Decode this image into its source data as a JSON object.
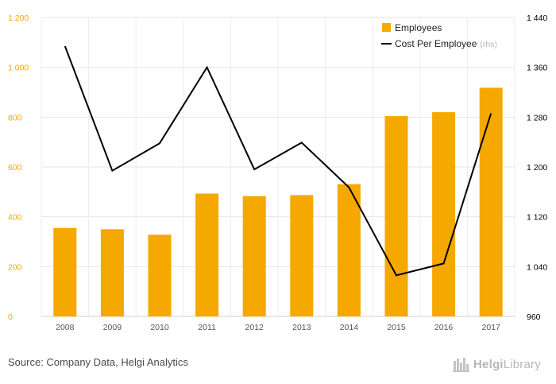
{
  "chart_data": {
    "type": "bar",
    "categories": [
      "2008",
      "2009",
      "2010",
      "2011",
      "2012",
      "2013",
      "2014",
      "2015",
      "2016",
      "2017"
    ],
    "series": [
      {
        "name": "Employees",
        "type": "bar",
        "axis": "left",
        "color": "#f5a800",
        "values": [
          355,
          350,
          328,
          493,
          483,
          487,
          531,
          804,
          820,
          918
        ]
      },
      {
        "name": "Cost Per Employee",
        "suffix": "(rhs)",
        "type": "line",
        "axis": "right",
        "color": "#000000",
        "values": [
          1394,
          1194,
          1238,
          1360,
          1196,
          1239,
          1167,
          1026,
          1045,
          1286
        ]
      }
    ],
    "left_axis": {
      "range": [
        0,
        1200
      ],
      "ticks": [
        0,
        200,
        400,
        600,
        800,
        1000,
        1200
      ],
      "tick_labels": [
        "0",
        "200",
        "400",
        "600",
        "800",
        "1 000",
        "1 200"
      ],
      "color": "#f5a800"
    },
    "right_axis": {
      "range": [
        960,
        1440
      ],
      "ticks": [
        960,
        1040,
        1120,
        1200,
        1280,
        1360,
        1440
      ],
      "tick_labels": [
        "960",
        "1 040",
        "1 120",
        "1 200",
        "1 280",
        "1 360",
        "1 440"
      ],
      "color": "#000000"
    },
    "legend": {
      "placement": "top-right",
      "items": [
        "Employees",
        "Cost Per Employee"
      ],
      "suffix": "(rhs)"
    },
    "grid": true
  },
  "source": "Source: Company Data, Helgi Analytics",
  "brand": {
    "prefix": "Helgi",
    "suffix": "Library"
  }
}
